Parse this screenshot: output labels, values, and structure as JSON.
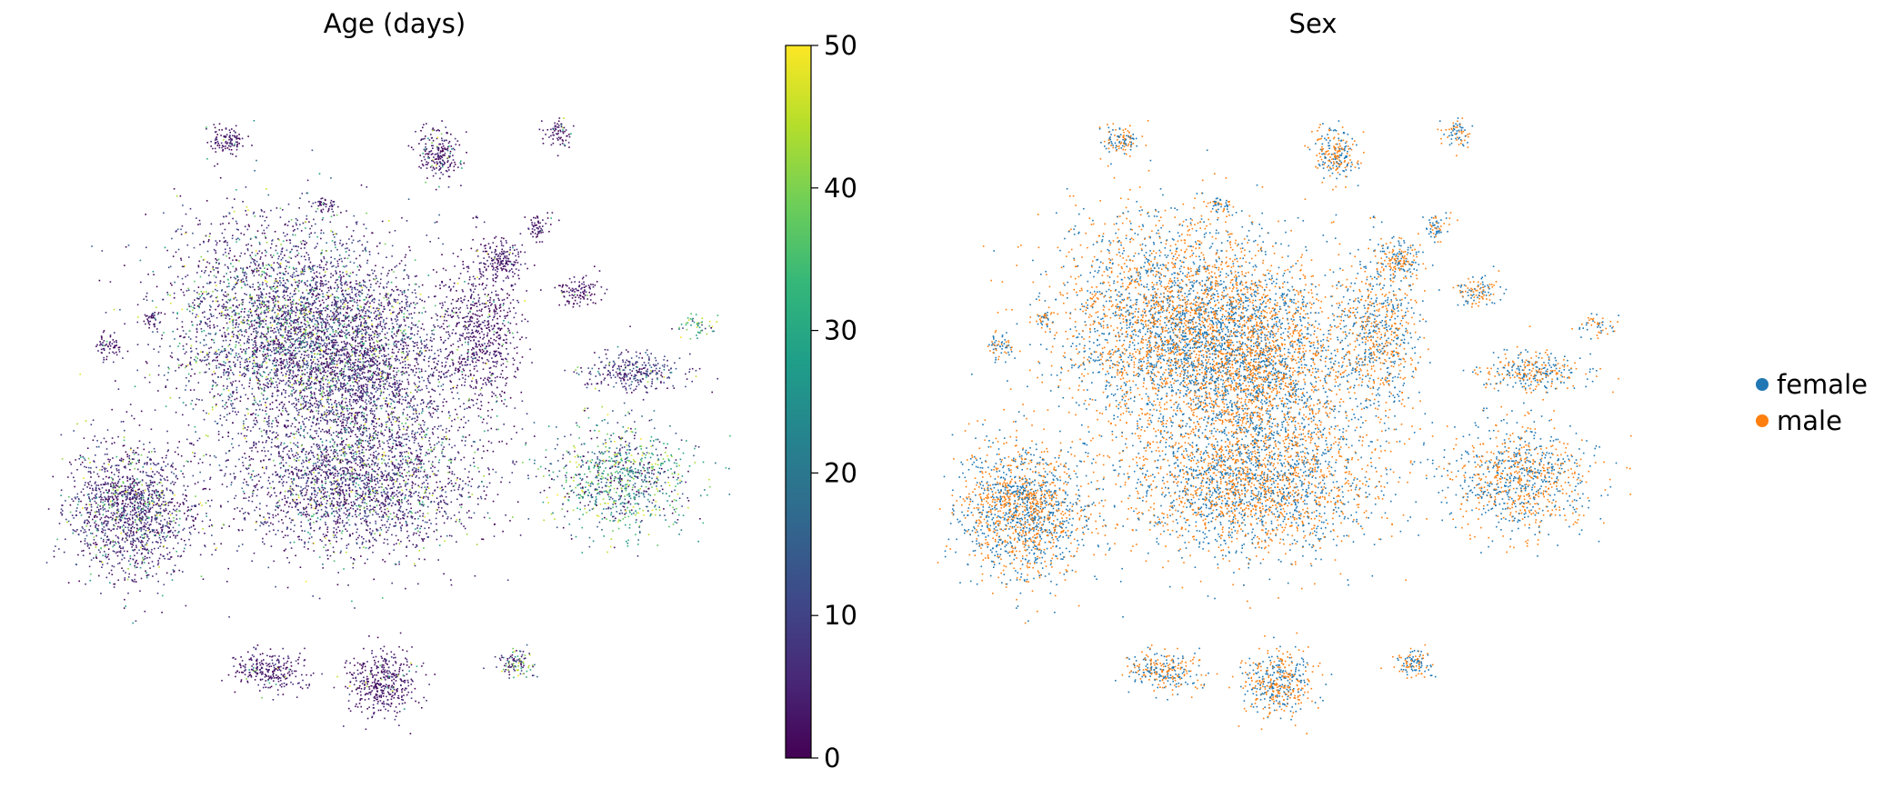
{
  "chart_data": [
    {
      "type": "scatter",
      "title": "Age (days)",
      "xlabel": "",
      "ylabel": "",
      "colorbar": {
        "range": [
          0,
          50
        ],
        "ticks": [
          "0",
          "10",
          "20",
          "30",
          "40",
          "50"
        ],
        "colormap": "viridis",
        "stops": [
          "#440154",
          "#482878",
          "#3e4989",
          "#31688e",
          "#26828e",
          "#1f9e89",
          "#35b779",
          "#6ece58",
          "#b5de2b",
          "#fde725"
        ]
      },
      "grid": false,
      "clusters": [
        {
          "cx": 0.34,
          "cy": 0.38,
          "rx": 0.17,
          "ry": 0.16,
          "n": 3200,
          "age_mean": 11,
          "age_hi_frac": 0.18
        },
        {
          "cx": 0.45,
          "cy": 0.44,
          "rx": 0.14,
          "ry": 0.15,
          "n": 2200,
          "age_mean": 9,
          "age_hi_frac": 0.12
        },
        {
          "cx": 0.44,
          "cy": 0.62,
          "rx": 0.18,
          "ry": 0.11,
          "n": 2400,
          "age_mean": 10,
          "age_hi_frac": 0.14
        },
        {
          "cx": 0.12,
          "cy": 0.66,
          "rx": 0.09,
          "ry": 0.1,
          "n": 1500,
          "age_mean": 9,
          "age_hi_frac": 0.15
        },
        {
          "cx": 0.82,
          "cy": 0.61,
          "rx": 0.1,
          "ry": 0.08,
          "n": 900,
          "age_mean": 22,
          "age_hi_frac": 0.35
        },
        {
          "cx": 0.84,
          "cy": 0.45,
          "rx": 0.08,
          "ry": 0.03,
          "n": 300,
          "age_mean": 12,
          "age_hi_frac": 0.1
        },
        {
          "cx": 0.62,
          "cy": 0.4,
          "rx": 0.06,
          "ry": 0.12,
          "n": 700,
          "age_mean": 5,
          "age_hi_frac": 0.05
        },
        {
          "cx": 0.32,
          "cy": 0.9,
          "rx": 0.05,
          "ry": 0.03,
          "n": 260,
          "age_mean": 6,
          "age_hi_frac": 0.04
        },
        {
          "cx": 0.48,
          "cy": 0.92,
          "rx": 0.05,
          "ry": 0.05,
          "n": 420,
          "age_mean": 5,
          "age_hi_frac": 0.05
        },
        {
          "cx": 0.67,
          "cy": 0.89,
          "rx": 0.03,
          "ry": 0.02,
          "n": 110,
          "age_mean": 12,
          "age_hi_frac": 0.3
        },
        {
          "cx": 0.26,
          "cy": 0.1,
          "rx": 0.03,
          "ry": 0.02,
          "n": 110,
          "age_mean": 5,
          "age_hi_frac": 0.05
        },
        {
          "cx": 0.56,
          "cy": 0.12,
          "rx": 0.03,
          "ry": 0.04,
          "n": 220,
          "age_mean": 6,
          "age_hi_frac": 0.08
        },
        {
          "cx": 0.73,
          "cy": 0.09,
          "rx": 0.02,
          "ry": 0.02,
          "n": 70,
          "age_mean": 4,
          "age_hi_frac": 0.05
        },
        {
          "cx": 0.65,
          "cy": 0.28,
          "rx": 0.03,
          "ry": 0.03,
          "n": 160,
          "age_mean": 5,
          "age_hi_frac": 0.05
        },
        {
          "cx": 0.76,
          "cy": 0.33,
          "rx": 0.03,
          "ry": 0.02,
          "n": 110,
          "age_mean": 4,
          "age_hi_frac": 0.05
        },
        {
          "cx": 0.09,
          "cy": 0.41,
          "rx": 0.02,
          "ry": 0.02,
          "n": 60,
          "age_mean": 5,
          "age_hi_frac": 0.05
        },
        {
          "cx": 0.15,
          "cy": 0.37,
          "rx": 0.01,
          "ry": 0.01,
          "n": 30,
          "age_mean": 5,
          "age_hi_frac": 0.05
        },
        {
          "cx": 0.93,
          "cy": 0.38,
          "rx": 0.03,
          "ry": 0.02,
          "n": 50,
          "age_mean": 35,
          "age_hi_frac": 0.6
        },
        {
          "cx": 0.4,
          "cy": 0.2,
          "rx": 0.02,
          "ry": 0.01,
          "n": 40,
          "age_mean": 5,
          "age_hi_frac": 0.05
        },
        {
          "cx": 0.7,
          "cy": 0.23,
          "rx": 0.02,
          "ry": 0.02,
          "n": 60,
          "age_mean": 4,
          "age_hi_frac": 0.05
        }
      ]
    },
    {
      "type": "scatter",
      "title": "Sex",
      "xlabel": "",
      "ylabel": "",
      "grid": false,
      "legend": {
        "placement": "right",
        "entries": [
          {
            "name": "female",
            "color": "#1f77b4"
          },
          {
            "name": "male",
            "color": "#ff7f0e"
          }
        ]
      },
      "female_fraction": 0.5
    }
  ]
}
